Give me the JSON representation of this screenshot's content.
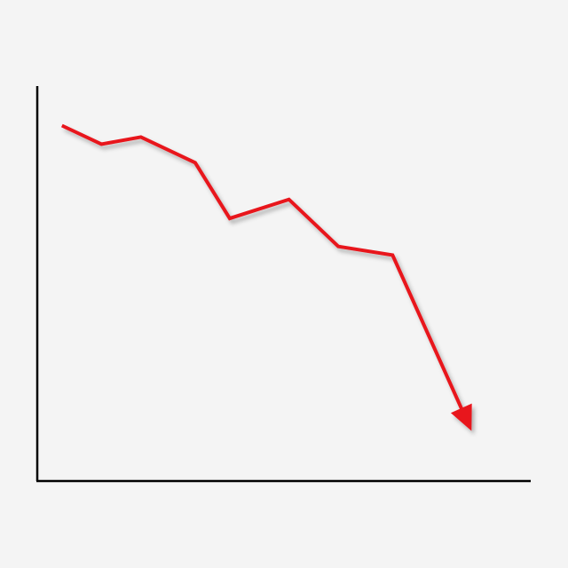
{
  "chart_data": {
    "type": "line",
    "title": "",
    "xlabel": "",
    "ylabel": "",
    "grid": false,
    "legend": "none",
    "end_marker": "arrow",
    "xlim": [
      0,
      10
    ],
    "ylim": [
      0,
      100
    ],
    "x": [
      0.5,
      1.3,
      2.1,
      3.2,
      3.9,
      5.1,
      6.1,
      7.2,
      8.8
    ],
    "series": [
      {
        "color": "#e8141b",
        "values": [
          90,
          85.3,
          87.1,
          80.6,
          66.5,
          71.3,
          59.4,
          57.2,
          12.7
        ]
      }
    ],
    "axis_color": "#000000"
  }
}
